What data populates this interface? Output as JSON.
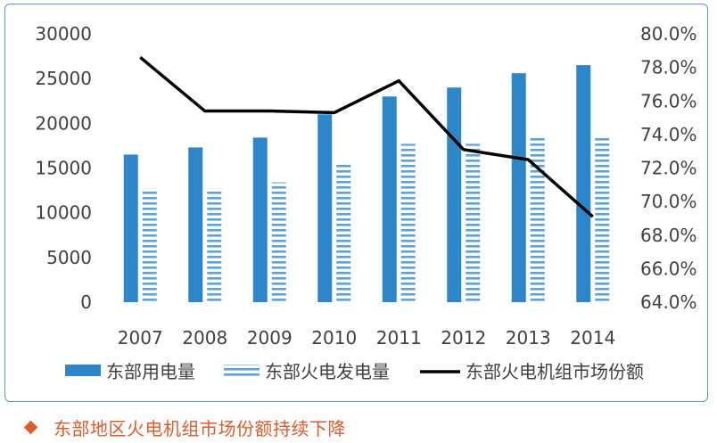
{
  "caption": "东部地区火电机组市场份额持续下降",
  "colors": {
    "frame": "#5b8fcf",
    "bar_solid": "#2e86c9",
    "bar_striped": "#5ba3dc",
    "line": "#000000",
    "caption": "#e05a2b"
  },
  "icons": {
    "caption_marker": "diamond-icon"
  },
  "chart_data": {
    "type": "bar",
    "categories": [
      "2007",
      "2008",
      "2009",
      "2010",
      "2011",
      "2012",
      "2013",
      "2014"
    ],
    "series": [
      {
        "name": "东部用电量",
        "kind": "bar",
        "style": "solid",
        "axis": "left",
        "values": [
          16500,
          17300,
          18400,
          21000,
          23000,
          24000,
          25600,
          26500
        ]
      },
      {
        "name": "东部火电发电量",
        "kind": "bar",
        "style": "striped",
        "axis": "left",
        "values": [
          12700,
          12700,
          13400,
          15600,
          17700,
          17700,
          18500,
          18500
        ]
      },
      {
        "name": "东部火电机组市场份额",
        "kind": "line",
        "axis": "right",
        "values": [
          78.6,
          75.4,
          75.4,
          75.3,
          77.2,
          73.1,
          72.5,
          69.1
        ]
      }
    ],
    "y_left": {
      "min": 0,
      "max": 30000,
      "ticks": [
        "0",
        "5000",
        "10000",
        "15000",
        "20000",
        "25000",
        "30000"
      ]
    },
    "y_right": {
      "min": 64,
      "max": 80,
      "ticks": [
        "64.0%",
        "66.0%",
        "68.0%",
        "70.0%",
        "72.0%",
        "74.0%",
        "76.0%",
        "78.0%",
        "80.0%"
      ]
    },
    "legend_position": "bottom",
    "grid": false
  }
}
